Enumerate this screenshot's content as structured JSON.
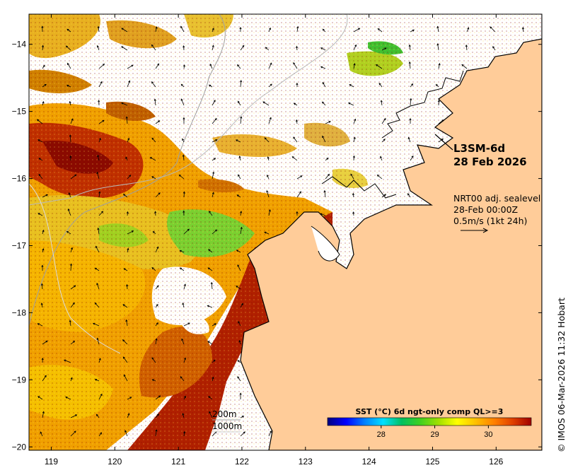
{
  "map": {
    "product_label": "L3SM-6d",
    "date_label": "28 Feb 2026",
    "current_info": {
      "line1": "NRT00 adj. sealevel",
      "line2": "28-Feb 00:00Z",
      "line3": "0.5m/s (1kt 24h)"
    },
    "isobaths": {
      "label1": "200m",
      "label2": "1000m"
    },
    "colorbar": {
      "title": "SST (°C) 6d ngt-only comp QL>=3",
      "ticks": [
        {
          "label": "28",
          "value": 28
        },
        {
          "label": "29",
          "value": 29
        },
        {
          "label": "30",
          "value": 30
        }
      ],
      "range": [
        27.0,
        30.8
      ],
      "colors": [
        "#00007f",
        "#0000ff",
        "#0080ff",
        "#00e0ff",
        "#00c060",
        "#40d020",
        "#a0e000",
        "#ffff00",
        "#ffc000",
        "#ff8000",
        "#e04000",
        "#a00000"
      ]
    },
    "credit": "© IMOS 06-Mar-2026 11:32 Hobart",
    "x_ticks": [
      {
        "label": "119",
        "value": 119
      },
      {
        "label": "120",
        "value": 120
      },
      {
        "label": "121",
        "value": 121
      },
      {
        "label": "122",
        "value": 122
      },
      {
        "label": "123",
        "value": 123
      },
      {
        "label": "124",
        "value": 124
      },
      {
        "label": "125",
        "value": 125
      },
      {
        "label": "126",
        "value": 126
      }
    ],
    "y_ticks": [
      {
        "label": "−14",
        "value": -14
      },
      {
        "label": "−15",
        "value": -15
      },
      {
        "label": "−16",
        "value": -16
      },
      {
        "label": "−17",
        "value": -17
      },
      {
        "label": "−18",
        "value": -18
      },
      {
        "label": "−19",
        "value": -19
      },
      {
        "label": "−20",
        "value": -20
      }
    ],
    "lon_range": [
      118.65,
      126.72
    ],
    "lat_range": [
      -20.05,
      -13.55
    ],
    "land_color": "#ffcc99"
  }
}
